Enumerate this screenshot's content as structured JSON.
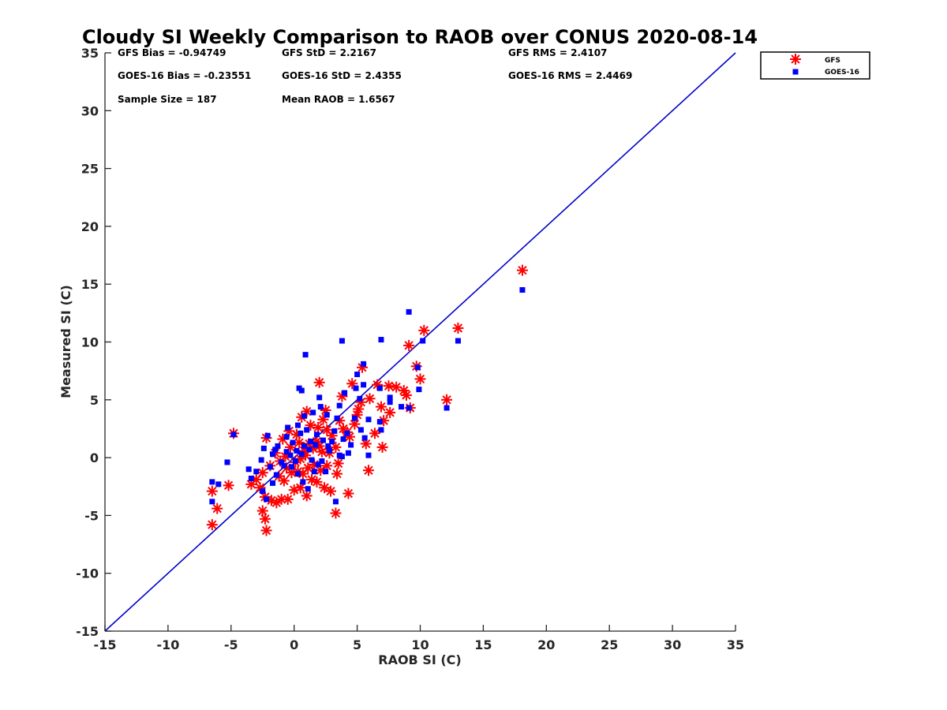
{
  "colors": {
    "gfs": "#ff0000",
    "goes16": "#0000ff",
    "one_to_one_line": "#0000cc",
    "axis": "#262626"
  },
  "chart_data": {
    "type": "scatter",
    "title": "Cloudy SI Weekly Comparison to RAOB over CONUS 2020-08-14",
    "xlabel": "RAOB SI (C)",
    "ylabel": "Measured SI (C)",
    "xlim": [
      -15,
      35
    ],
    "ylim": [
      -15,
      35
    ],
    "xticks": [
      -15,
      -10,
      -5,
      0,
      5,
      10,
      15,
      20,
      25,
      30,
      35
    ],
    "yticks": [
      -15,
      -10,
      -5,
      0,
      5,
      10,
      15,
      20,
      25,
      30,
      35
    ],
    "grid": false,
    "legend_position": "top-right, outside plot",
    "reference_line": {
      "x": [
        -15,
        35
      ],
      "y": [
        -15,
        35
      ]
    },
    "stats": [
      "GFS Bias = -0.94749",
      "GFS StD = 2.2167",
      "GFS RMS = 2.4107",
      "GOES-16 Bias = -0.23551",
      "GOES-16 StD = 2.4355",
      "GOES-16 RMS = 2.4469",
      "Sample Size = 187",
      "Mean RAOB = 1.6567"
    ],
    "series": [
      {
        "name": "GFS",
        "marker": "asterisk",
        "points": [
          [
            18.1,
            16.2
          ],
          [
            13.0,
            11.2
          ],
          [
            10.3,
            11.0
          ],
          [
            9.1,
            9.7
          ],
          [
            9.7,
            7.9
          ],
          [
            12.1,
            5.0
          ],
          [
            10.0,
            6.8
          ],
          [
            9.2,
            4.3
          ],
          [
            8.7,
            5.8
          ],
          [
            8.1,
            6.1
          ],
          [
            7.6,
            3.9
          ],
          [
            7.1,
            3.2
          ],
          [
            7.0,
            0.9
          ],
          [
            5.9,
            -1.1
          ],
          [
            5.4,
            7.8
          ],
          [
            4.6,
            6.4
          ],
          [
            5.3,
            4.8
          ],
          [
            5.0,
            3.7
          ],
          [
            3.8,
            5.3
          ],
          [
            2.0,
            6.5
          ],
          [
            4.3,
            -3.1
          ],
          [
            3.3,
            -4.8
          ],
          [
            6.9,
            4.4
          ],
          [
            7.5,
            6.2
          ],
          [
            6.6,
            6.3
          ],
          [
            5.7,
            1.2
          ],
          [
            4.8,
            2.9
          ],
          [
            4.2,
            2.2
          ],
          [
            3.6,
            3.2
          ],
          [
            3.0,
            1.9
          ],
          [
            2.6,
            2.4
          ],
          [
            2.5,
            4.1
          ],
          [
            2.2,
            0.5
          ],
          [
            1.8,
            1.4
          ],
          [
            1.3,
            2.8
          ],
          [
            1.0,
            4.0
          ],
          [
            0.6,
            3.5
          ],
          [
            0.4,
            1.3
          ],
          [
            0.1,
            -0.4
          ],
          [
            -0.3,
            0.9
          ],
          [
            -0.6,
            -0.9
          ],
          [
            -0.9,
            1.6
          ],
          [
            -1.2,
            -1.6
          ],
          [
            -1.5,
            0.4
          ],
          [
            -1.9,
            -0.7
          ],
          [
            -2.2,
            1.7
          ],
          [
            -2.5,
            -1.3
          ],
          [
            -2.7,
            -2.6
          ],
          [
            -3.0,
            -1.9
          ],
          [
            -3.4,
            -2.3
          ],
          [
            -2.3,
            -3.4
          ],
          [
            -2.5,
            -4.6
          ],
          [
            -2.3,
            -5.3
          ],
          [
            -2.2,
            -6.3
          ],
          [
            -1.8,
            -3.7
          ],
          [
            -1.4,
            -3.9
          ],
          [
            -1.0,
            -3.6
          ],
          [
            -0.5,
            -3.6
          ],
          [
            0.0,
            -2.8
          ],
          [
            0.5,
            -2.6
          ],
          [
            1.0,
            -3.3
          ],
          [
            1.4,
            -1.9
          ],
          [
            1.8,
            -2.1
          ],
          [
            2.4,
            -2.6
          ],
          [
            2.9,
            -2.9
          ],
          [
            3.4,
            -1.4
          ],
          [
            3.5,
            -0.5
          ],
          [
            2.6,
            -0.7
          ],
          [
            2.1,
            -1.1
          ],
          [
            1.6,
            -0.6
          ],
          [
            1.1,
            -0.9
          ],
          [
            0.7,
            -1.4
          ],
          [
            0.3,
            -1.2
          ],
          [
            -0.2,
            -1.3
          ],
          [
            -0.8,
            -2.0
          ],
          [
            -5.2,
            -2.4
          ],
          [
            -4.8,
            2.1
          ],
          [
            -6.1,
            -4.4
          ],
          [
            -6.5,
            -5.8
          ],
          [
            -6.5,
            -2.9
          ],
          [
            0.9,
            0.2
          ],
          [
            1.5,
            0.8
          ],
          [
            2.0,
            1.0
          ],
          [
            2.8,
            0.4
          ],
          [
            3.3,
            0.9
          ],
          [
            0.2,
            2.0
          ],
          [
            -0.4,
            2.3
          ],
          [
            1.2,
            1.2
          ],
          [
            0.8,
            0.6
          ],
          [
            -1.1,
            -0.3
          ],
          [
            -0.7,
            0.1
          ],
          [
            0.5,
            -0.1
          ],
          [
            1.9,
            2.6
          ],
          [
            2.3,
            3.3
          ],
          [
            3.9,
            2.5
          ],
          [
            4.4,
            1.8
          ],
          [
            6.0,
            5.1
          ],
          [
            8.9,
            5.4
          ],
          [
            6.4,
            2.1
          ],
          [
            5.1,
            4.2
          ]
        ]
      },
      {
        "name": "GOES-16",
        "marker": "square",
        "points": [
          [
            18.1,
            14.5
          ],
          [
            13.0,
            10.1
          ],
          [
            10.2,
            10.1
          ],
          [
            9.8,
            7.8
          ],
          [
            9.1,
            12.6
          ],
          [
            12.1,
            4.3
          ],
          [
            9.9,
            5.9
          ],
          [
            9.1,
            4.3
          ],
          [
            8.5,
            4.4
          ],
          [
            7.6,
            4.8
          ],
          [
            7.6,
            5.2
          ],
          [
            6.9,
            10.2
          ],
          [
            6.8,
            6.0
          ],
          [
            6.9,
            2.4
          ],
          [
            6.8,
            3.1
          ],
          [
            5.9,
            3.3
          ],
          [
            5.9,
            0.2
          ],
          [
            5.5,
            8.1
          ],
          [
            5.5,
            6.3
          ],
          [
            5.0,
            7.2
          ],
          [
            4.9,
            6.0
          ],
          [
            5.2,
            5.1
          ],
          [
            4.8,
            3.4
          ],
          [
            5.3,
            2.4
          ],
          [
            3.8,
            10.1
          ],
          [
            4.0,
            5.6
          ],
          [
            3.6,
            4.5
          ],
          [
            3.4,
            3.4
          ],
          [
            4.2,
            2.1
          ],
          [
            3.9,
            1.6
          ],
          [
            4.3,
            0.4
          ],
          [
            3.6,
            0.2
          ],
          [
            3.3,
            -3.8
          ],
          [
            3.8,
            0.1
          ],
          [
            0.9,
            8.9
          ],
          [
            0.4,
            6.0
          ],
          [
            0.6,
            5.8
          ],
          [
            2.0,
            5.2
          ],
          [
            2.1,
            4.4
          ],
          [
            2.6,
            3.7
          ],
          [
            1.5,
            3.9
          ],
          [
            0.8,
            3.6
          ],
          [
            0.3,
            2.8
          ],
          [
            -0.5,
            2.6
          ],
          [
            -0.6,
            1.8
          ],
          [
            -1.3,
            1.0
          ],
          [
            -1.7,
            0.3
          ],
          [
            -2.1,
            1.9
          ],
          [
            -2.4,
            0.8
          ],
          [
            -2.6,
            -0.2
          ],
          [
            -3.0,
            -1.2
          ],
          [
            -3.6,
            -1.0
          ],
          [
            -3.4,
            -1.8
          ],
          [
            -2.5,
            -2.9
          ],
          [
            -2.2,
            -3.6
          ],
          [
            -1.7,
            -2.2
          ],
          [
            -1.4,
            -1.5
          ],
          [
            -0.8,
            -0.7
          ],
          [
            -0.2,
            -0.8
          ],
          [
            0.3,
            -1.4
          ],
          [
            0.7,
            -2.1
          ],
          [
            1.1,
            -2.7
          ],
          [
            1.6,
            -1.2
          ],
          [
            2.2,
            -0.3
          ],
          [
            2.8,
            0.6
          ],
          [
            3.0,
            1.4
          ],
          [
            1.8,
            2.0
          ],
          [
            1.3,
            1.4
          ],
          [
            0.8,
            1.0
          ],
          [
            0.2,
            0.6
          ],
          [
            -0.3,
            0.2
          ],
          [
            -1.0,
            -0.4
          ],
          [
            -1.9,
            -0.8
          ],
          [
            -5.3,
            -0.4
          ],
          [
            -4.8,
            2.0
          ],
          [
            -6.0,
            -2.3
          ],
          [
            -6.5,
            -2.1
          ],
          [
            -6.5,
            -3.8
          ],
          [
            0.6,
            0.3
          ],
          [
            1.2,
            0.7
          ],
          [
            1.7,
            1.1
          ],
          [
            2.3,
            1.5
          ],
          [
            2.7,
            1.0
          ],
          [
            -0.1,
            1.3
          ],
          [
            0.5,
            2.1
          ],
          [
            1.0,
            2.4
          ],
          [
            1.4,
            -0.2
          ],
          [
            1.9,
            -0.6
          ],
          [
            2.5,
            -1.2
          ],
          [
            0.1,
            -0.3
          ],
          [
            -0.6,
            0.5
          ],
          [
            -1.5,
            0.7
          ],
          [
            3.2,
            2.3
          ],
          [
            4.5,
            1.1
          ],
          [
            5.6,
            1.7
          ]
        ]
      }
    ]
  }
}
